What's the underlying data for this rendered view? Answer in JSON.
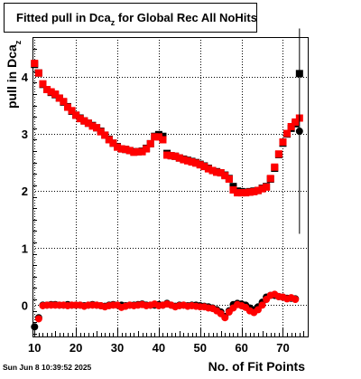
{
  "chart_data": {
    "type": "scatter",
    "title": {
      "main": "Fitted pull in Dca",
      "sub": "z",
      "rest": " for Global Rec All NoHits"
    },
    "ylabel": {
      "main": "pull in Dca",
      "sub": "z"
    },
    "xlabel": "No. of Fit Points",
    "timestamp": "Sun Jun  8 10:39:52 2025",
    "xlim": [
      9.5,
      76
    ],
    "ylim": [
      -0.55,
      4.7
    ],
    "xticks": [
      10,
      20,
      30,
      40,
      50,
      60,
      70
    ],
    "yticks": [
      0,
      1,
      2,
      3,
      4
    ],
    "grid": true,
    "colors": {
      "black_series": "#000000",
      "red_series": "#ff0000",
      "errorbar": "#000000"
    },
    "series": [
      {
        "marker": "square",
        "color": "#000000",
        "x": [
          10,
          11,
          12,
          13,
          14,
          15,
          16,
          17,
          18,
          19,
          20,
          21,
          22,
          23,
          24,
          25,
          26,
          27,
          28,
          29,
          30,
          31,
          32,
          33,
          34,
          35,
          36,
          37,
          38,
          39,
          40,
          41,
          42,
          43,
          44,
          45,
          46,
          47,
          48,
          49,
          50,
          51,
          52,
          53,
          54,
          55,
          56,
          57,
          58,
          59,
          60,
          61,
          62,
          63,
          64,
          65,
          66,
          67,
          68,
          69,
          70,
          71,
          72,
          73,
          74
        ],
        "y": [
          4.22,
          4.07,
          3.87,
          3.78,
          3.73,
          3.69,
          3.63,
          3.56,
          3.48,
          3.4,
          3.33,
          3.28,
          3.23,
          3.19,
          3.15,
          3.11,
          3.05,
          2.98,
          2.91,
          2.84,
          2.78,
          2.74,
          2.73,
          2.71,
          2.69,
          2.69,
          2.7,
          2.75,
          2.83,
          2.96,
          2.99,
          2.96,
          2.66,
          2.62,
          2.61,
          2.58,
          2.56,
          2.54,
          2.52,
          2.5,
          2.47,
          2.44,
          2.4,
          2.36,
          2.34,
          2.32,
          2.28,
          2.22,
          2.08,
          2.0,
          1.99,
          1.98,
          1.99,
          2.0,
          2.01,
          2.05,
          2.08,
          2.21,
          2.4,
          2.64,
          2.84,
          3.0,
          3.1,
          3.18,
          4.06
        ]
      },
      {
        "marker": "square",
        "color": "#ff0000",
        "x": [
          10,
          11,
          12,
          13,
          14,
          15,
          16,
          17,
          18,
          19,
          20,
          21,
          22,
          23,
          24,
          25,
          26,
          27,
          28,
          29,
          30,
          31,
          32,
          33,
          34,
          35,
          36,
          37,
          38,
          39,
          40,
          41,
          42,
          43,
          44,
          45,
          46,
          47,
          48,
          49,
          50,
          51,
          52,
          53,
          54,
          55,
          56,
          57,
          58,
          59,
          60,
          61,
          62,
          63,
          64,
          65,
          66,
          67,
          68,
          69,
          70,
          71,
          72,
          73,
          74
        ],
        "y": [
          4.24,
          4.07,
          3.88,
          3.78,
          3.74,
          3.7,
          3.63,
          3.57,
          3.47,
          3.41,
          3.33,
          3.27,
          3.23,
          3.19,
          3.14,
          3.11,
          3.04,
          2.98,
          2.9,
          2.84,
          2.77,
          2.74,
          2.73,
          2.71,
          2.68,
          2.69,
          2.69,
          2.74,
          2.83,
          2.95,
          2.95,
          2.9,
          2.63,
          2.62,
          2.61,
          2.58,
          2.55,
          2.53,
          2.51,
          2.49,
          2.46,
          2.43,
          2.39,
          2.36,
          2.33,
          2.32,
          2.27,
          2.21,
          2.02,
          1.97,
          1.97,
          1.97,
          1.98,
          1.99,
          2.01,
          2.04,
          2.07,
          2.22,
          2.42,
          2.65,
          2.86,
          3.01,
          3.13,
          3.21,
          3.28
        ]
      },
      {
        "marker": "circle",
        "color": "#000000",
        "x": [
          10,
          11,
          12,
          13,
          14,
          15,
          16,
          17,
          18,
          19,
          20,
          21,
          22,
          23,
          24,
          25,
          26,
          27,
          28,
          29,
          30,
          31,
          32,
          33,
          34,
          35,
          36,
          37,
          38,
          39,
          40,
          41,
          42,
          43,
          44,
          45,
          46,
          47,
          48,
          49,
          50,
          51,
          52,
          53,
          54,
          55,
          56,
          57,
          58,
          59,
          60,
          61,
          62,
          63,
          64,
          65,
          66,
          67,
          68,
          69,
          70,
          71,
          72,
          73,
          74
        ],
        "y": [
          -0.38,
          -0.22,
          0.0,
          0.0,
          0.01,
          0.01,
          0.0,
          0.0,
          0.01,
          0.0,
          0.0,
          0.0,
          -0.01,
          0.0,
          0.01,
          0.0,
          -0.01,
          -0.02,
          0.0,
          0.01,
          0.0,
          0.0,
          -0.01,
          0.0,
          0.0,
          0.01,
          0.02,
          0.0,
          0.0,
          0.0,
          0.01,
          0.0,
          0.03,
          0.0,
          -0.02,
          0.0,
          0.0,
          -0.01,
          0.0,
          0.0,
          -0.01,
          -0.02,
          -0.03,
          -0.05,
          -0.08,
          -0.12,
          -0.2,
          -0.1,
          0.01,
          0.03,
          0.02,
          0.0,
          -0.05,
          -0.08,
          -0.03,
          0.05,
          0.14,
          0.17,
          0.17,
          0.15,
          0.14,
          0.12,
          0.12,
          0.11,
          3.05
        ],
        "errors": [
          0,
          0,
          0,
          0,
          0,
          0,
          0,
          0,
          0,
          0,
          0,
          0,
          0,
          0,
          0,
          0,
          0,
          0,
          0,
          0,
          0,
          0,
          0,
          0,
          0,
          0,
          0,
          0,
          0,
          0,
          0,
          0,
          0,
          0,
          0,
          0,
          0,
          0,
          0,
          0,
          0,
          0,
          0,
          0,
          0,
          0,
          0,
          0,
          0,
          0,
          0,
          0,
          0,
          0,
          0,
          0,
          0,
          0,
          0,
          0,
          0,
          0,
          0,
          0,
          1.8
        ]
      },
      {
        "marker": "circle",
        "color": "#ff0000",
        "x": [
          11,
          12,
          13,
          14,
          15,
          16,
          17,
          18,
          19,
          20,
          21,
          22,
          23,
          24,
          25,
          26,
          27,
          28,
          29,
          30,
          31,
          32,
          33,
          34,
          35,
          36,
          37,
          38,
          39,
          40,
          41,
          42,
          43,
          44,
          45,
          46,
          47,
          48,
          49,
          50,
          51,
          52,
          53,
          54,
          55,
          56,
          57,
          58,
          59,
          60,
          61,
          62,
          63,
          64,
          65,
          66,
          67,
          68,
          69,
          70,
          71,
          72,
          73
        ],
        "y": [
          -0.24,
          -0.01,
          0.0,
          0.0,
          0.0,
          0.0,
          0.0,
          -0.01,
          0.0,
          0.0,
          0.0,
          -0.02,
          0.0,
          0.0,
          0.0,
          -0.01,
          -0.03,
          -0.01,
          0.0,
          0.0,
          -0.04,
          -0.02,
          0.0,
          -0.01,
          0.0,
          0.01,
          -0.01,
          0.0,
          0.02,
          -0.01,
          0.0,
          0.02,
          0.0,
          -0.03,
          -0.01,
          0.0,
          -0.02,
          -0.01,
          -0.02,
          -0.03,
          -0.03,
          -0.05,
          -0.06,
          -0.1,
          -0.15,
          -0.22,
          -0.12,
          -0.05,
          0.01,
          -0.01,
          -0.04,
          -0.1,
          -0.13,
          -0.08,
          0.0,
          0.1,
          0.17,
          0.19,
          0.15,
          0.14,
          0.11,
          0.13,
          0.1
        ]
      }
    ]
  }
}
